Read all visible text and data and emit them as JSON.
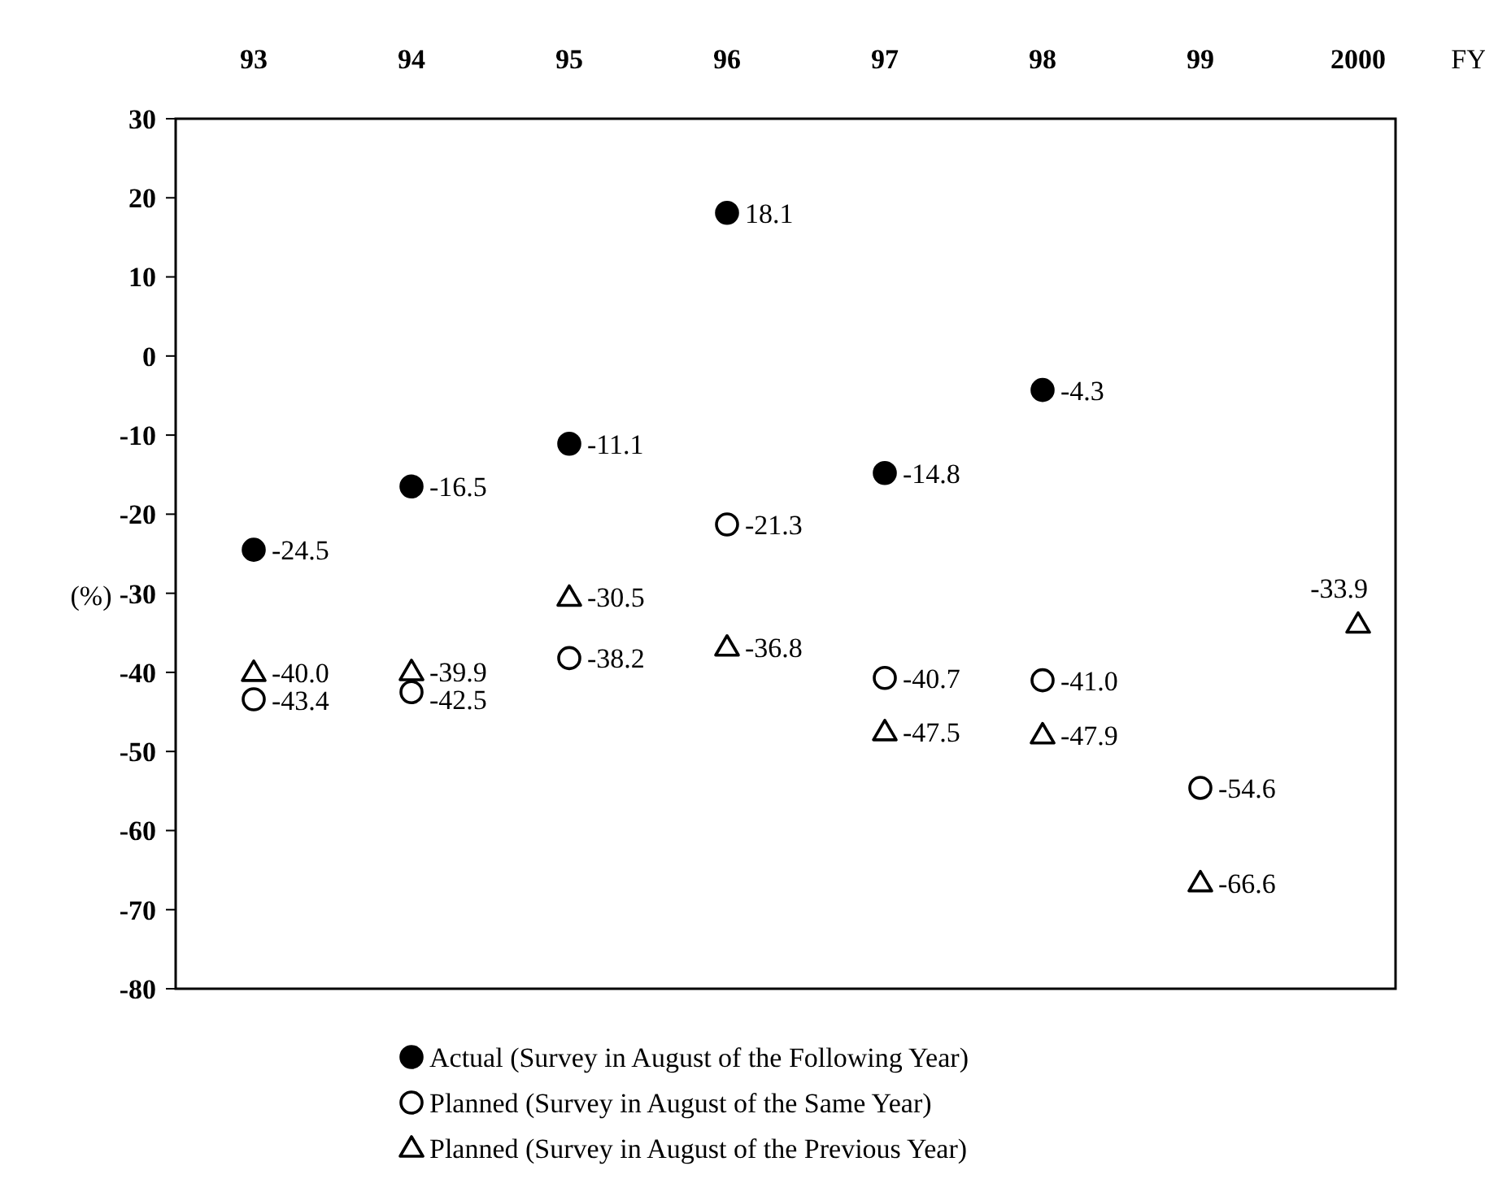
{
  "chart_data": {
    "type": "scatter",
    "xlabel": "FY",
    "ylabel": "(%)",
    "categories": [
      "93",
      "94",
      "95",
      "96",
      "97",
      "98",
      "99",
      "2000"
    ],
    "ylim": [
      -80,
      30
    ],
    "yticks": [
      -80,
      -70,
      -60,
      -50,
      -40,
      -30,
      -20,
      -10,
      0,
      10,
      20,
      30
    ],
    "grid": false,
    "legend": "bottom",
    "data_labels": true,
    "series": [
      {
        "name": "Actual   (Survey in August of the Following Year)",
        "color": "#000000",
        "marker": "circle",
        "values": [
          -24.5,
          -16.5,
          -11.1,
          18.1,
          -14.8,
          -4.3,
          null,
          null
        ],
        "value_labels": [
          "-24.5",
          "-16.5",
          "-11.1",
          "18.1",
          "-14.8",
          "-4.3",
          null,
          null
        ]
      },
      {
        "name": "Planned (Survey in August of the Same Year)",
        "color": "#ffffff",
        "marker": "circle",
        "values": [
          -43.4,
          -42.5,
          -38.2,
          -21.3,
          -40.7,
          -41.0,
          -54.6,
          null
        ],
        "value_labels": [
          "-43.4",
          "-42.5",
          "-38.2",
          "-21.3",
          "-40.7",
          "-41.0",
          "-54.6",
          null
        ]
      },
      {
        "name": "Planned (Survey in August of the Previous Year)",
        "color": "#ffffff",
        "marker": "triangle",
        "values": [
          -40.0,
          -39.9,
          -30.5,
          -36.8,
          -47.5,
          -47.9,
          -66.6,
          -33.9
        ],
        "value_labels": [
          "-40.0",
          "-39.9",
          "-30.5",
          "-36.8",
          "-47.5",
          "-47.9",
          "-66.6",
          "-33.9"
        ]
      }
    ]
  }
}
